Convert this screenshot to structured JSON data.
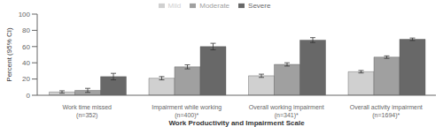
{
  "chart_data": {
    "type": "bar",
    "xlabel": "Work Productivity and Impairment Scale",
    "ylabel": "Percent (95% CI)",
    "categories": [
      "Work time missed\n(n=352)",
      "Impairment while working\n(n=400)*",
      "Overall working impairment\n(n=341)*",
      "Overall activity impairment\n(n=1694)*"
    ],
    "series": [
      {
        "name": "Mild",
        "color": "#d0d0d0",
        "values": [
          4,
          21,
          24,
          29
        ],
        "errors": [
          1.5,
          2,
          2,
          1.5
        ]
      },
      {
        "name": "Moderate",
        "color": "#a0a0a0",
        "values": [
          6,
          35,
          38,
          47
        ],
        "errors": [
          2.5,
          2.5,
          2,
          1.5
        ]
      },
      {
        "name": "Severe",
        "color": "#686868",
        "values": [
          23,
          60,
          68,
          69
        ],
        "errors": [
          4,
          4,
          3,
          1.5
        ]
      }
    ],
    "ylim": [
      0,
      100
    ],
    "yticks": [
      0,
      20,
      40,
      60,
      80,
      100
    ],
    "legend": "top",
    "grid": false
  }
}
